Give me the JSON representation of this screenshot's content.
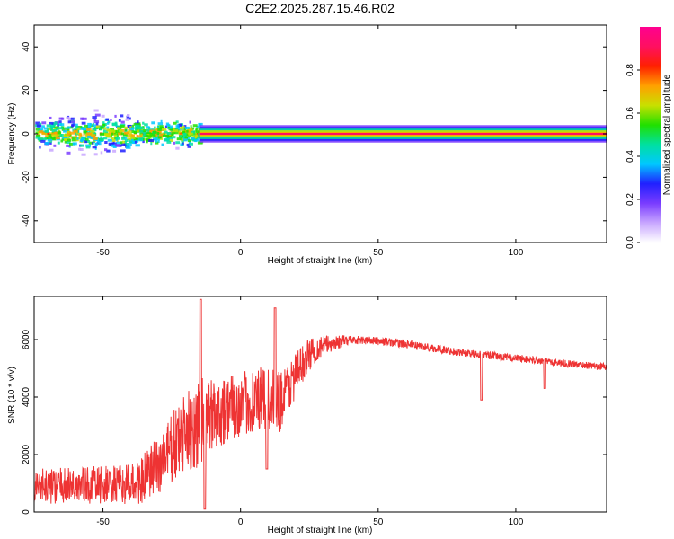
{
  "title": "C2E2.2025.287.15.46.R02",
  "chart_data": [
    {
      "type": "heatmap",
      "name": "spectrogram",
      "xlabel": "Height of straight line (km)",
      "ylabel": "Frequency (Hz)",
      "xlim": [
        -75,
        133
      ],
      "ylim": [
        -50,
        50
      ],
      "xticks": [
        -50,
        0,
        50,
        100
      ],
      "yticks": [
        -40,
        -20,
        0,
        20,
        40
      ],
      "colorbar": {
        "label": "Normalized spectral amplitude",
        "range": [
          0.0,
          1.0
        ],
        "ticks": [
          0.0,
          0.2,
          0.4,
          0.6,
          0.8
        ],
        "tick_labels": [
          "0.0",
          "0.2",
          "0.4",
          "0.6",
          "0.8"
        ],
        "colors": [
          "#ffffff",
          "#c8a6ff",
          "#7a3cff",
          "#2020ff",
          "#00c8ff",
          "#00e0a0",
          "#20e000",
          "#c8e000",
          "#ffa000",
          "#ff2000",
          "#ff1060",
          "#ff0090"
        ]
      },
      "features": {
        "scatter_region": {
          "x": [
            -75,
            -15
          ],
          "freq_spread_hz": 10
        },
        "carrier_line": {
          "x": [
            -15,
            133
          ],
          "freq_hz": 0,
          "amplitude": 0.9
        }
      }
    },
    {
      "type": "line",
      "name": "snr",
      "xlabel": "Height of straight line (km)",
      "ylabel": "SNR (10 * v/v)",
      "xlim": [
        -75,
        133
      ],
      "ylim": [
        0,
        7500
      ],
      "xticks": [
        -50,
        0,
        50,
        100
      ],
      "yticks": [
        0,
        2000,
        4000,
        6000
      ],
      "color": "#ee3333",
      "baseline": {
        "x": [
          -75,
          -40,
          -35,
          -30,
          -25,
          -20,
          -15,
          -10,
          -5,
          0,
          5,
          10,
          15,
          20,
          25,
          30,
          35,
          40,
          50,
          60,
          70,
          80,
          90,
          100,
          110,
          120,
          133
        ],
        "y": [
          900,
          950,
          1150,
          1600,
          2200,
          2700,
          3100,
          3400,
          3600,
          3700,
          3900,
          3800,
          3900,
          4800,
          5500,
          5800,
          5900,
          6000,
          5950,
          5850,
          5700,
          5550,
          5450,
          5350,
          5250,
          5150,
          5050
        ]
      },
      "noise": {
        "x": [
          -75,
          -40,
          -35,
          -15,
          -10,
          0,
          5,
          15,
          20,
          30,
          40,
          133
        ],
        "amplitude": [
          600,
          700,
          900,
          1600,
          1300,
          1100,
          1200,
          1100,
          800,
          350,
          150,
          120
        ]
      },
      "spikes": [
        {
          "x": -14.5,
          "y": 7400
        },
        {
          "x": -13,
          "y": 100
        },
        {
          "x": 12.5,
          "y": 7100
        },
        {
          "x": 9.5,
          "y": 1500
        },
        {
          "x": 87.5,
          "y": 3900
        },
        {
          "x": 110.5,
          "y": 4300
        }
      ]
    }
  ]
}
